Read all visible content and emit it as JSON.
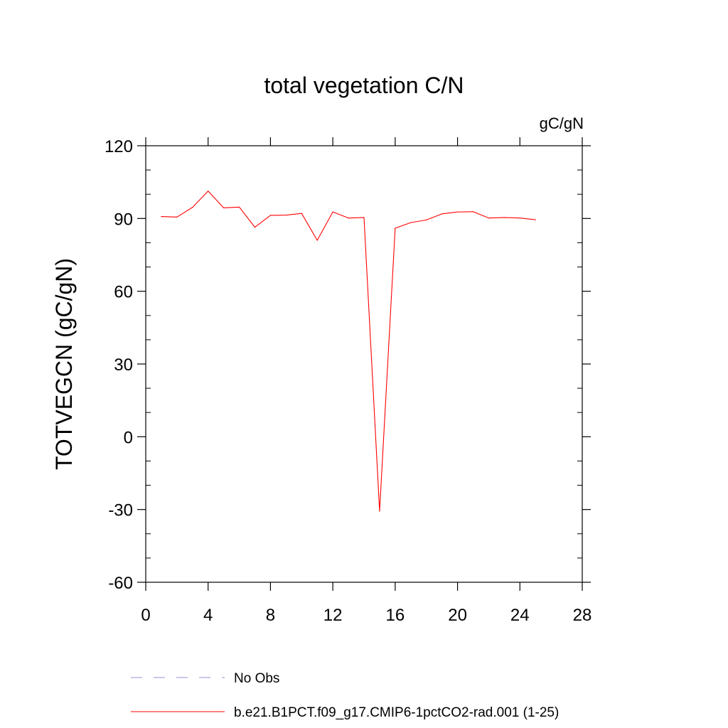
{
  "chart_data": {
    "type": "line",
    "title": "total vegetation C/N",
    "units_label": "gC/gN",
    "xlabel": "",
    "ylabel": "TOTVEGCN  (gC/gN)",
    "xlim": [
      0,
      28
    ],
    "ylim": [
      -60,
      120
    ],
    "x_ticks": [
      0,
      4,
      8,
      12,
      16,
      20,
      24,
      28
    ],
    "x_tick_labels": [
      "0",
      "4",
      "8",
      "12",
      "16",
      "20",
      "24",
      "28"
    ],
    "y_ticks": [
      -60,
      -30,
      0,
      30,
      60,
      90,
      120
    ],
    "y_tick_labels": [
      "-60",
      "-30",
      "0",
      "30",
      "60",
      "90",
      "120"
    ],
    "grid": false,
    "legend_position": "bottom",
    "series": [
      {
        "name": "b.e21.B1PCT.f09_g17.CMIP6-1pctCO2-rad.001 (1-25)",
        "color": "#ff0000",
        "style": "solid",
        "x": [
          1,
          2,
          3,
          4,
          5,
          6,
          7,
          8,
          9,
          10,
          11,
          12,
          13,
          14,
          15,
          16,
          17,
          18,
          19,
          20,
          21,
          22,
          23,
          24,
          25
        ],
        "y": [
          90.8,
          90.6,
          94.6,
          101.3,
          94.4,
          94.7,
          86.4,
          91.3,
          91.4,
          92.1,
          81.0,
          92.7,
          90.2,
          90.4,
          -30.7,
          86.0,
          88.3,
          89.4,
          91.9,
          92.7,
          92.8,
          90.2,
          90.4,
          90.2,
          89.5
        ]
      },
      {
        "name": "No Obs",
        "color": "#9a8fd0",
        "style": "dashed",
        "x": [],
        "y": []
      }
    ],
    "legend_order": [
      "No Obs",
      "b.e21.B1PCT.f09_g17.CMIP6-1pctCO2-rad.001 (1-25)"
    ]
  }
}
